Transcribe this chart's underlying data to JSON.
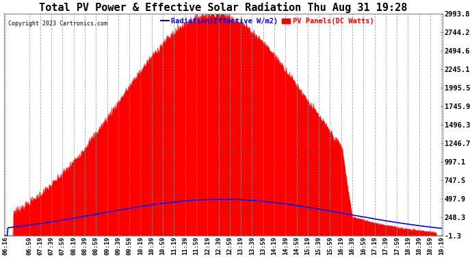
{
  "title": "Total PV Power & Effective Solar Radiation Thu Aug 31 19:28",
  "copyright": "Copyright 2023 Cartronics.com",
  "legend_radiation": "Radiation(Effective W/m2)",
  "legend_pv": "PV Panels(DC Watts)",
  "legend_radiation_color": "blue",
  "legend_pv_color": "red",
  "ylabel_right_ticks": [
    2993.8,
    2744.2,
    2494.6,
    2245.1,
    1995.5,
    1745.9,
    1496.3,
    1246.7,
    997.1,
    747.5,
    497.9,
    248.3,
    -1.3
  ],
  "y_min": -1.3,
  "y_max": 2993.8,
  "background_color": "#ffffff",
  "plot_bg_color": "#ffffff",
  "grid_color": "#aaaaaa",
  "title_color": "#000000",
  "title_fontsize": 11,
  "x_labels": [
    "06:16",
    "06:59",
    "07:19",
    "07:39",
    "07:59",
    "08:19",
    "08:39",
    "08:59",
    "09:19",
    "09:39",
    "09:59",
    "10:19",
    "10:39",
    "10:59",
    "11:19",
    "11:39",
    "11:59",
    "12:19",
    "12:39",
    "12:59",
    "13:19",
    "13:39",
    "13:59",
    "14:19",
    "14:39",
    "14:59",
    "15:19",
    "15:39",
    "15:59",
    "16:19",
    "16:39",
    "16:59",
    "17:19",
    "17:39",
    "17:59",
    "18:19",
    "18:39",
    "18:59",
    "19:19"
  ]
}
